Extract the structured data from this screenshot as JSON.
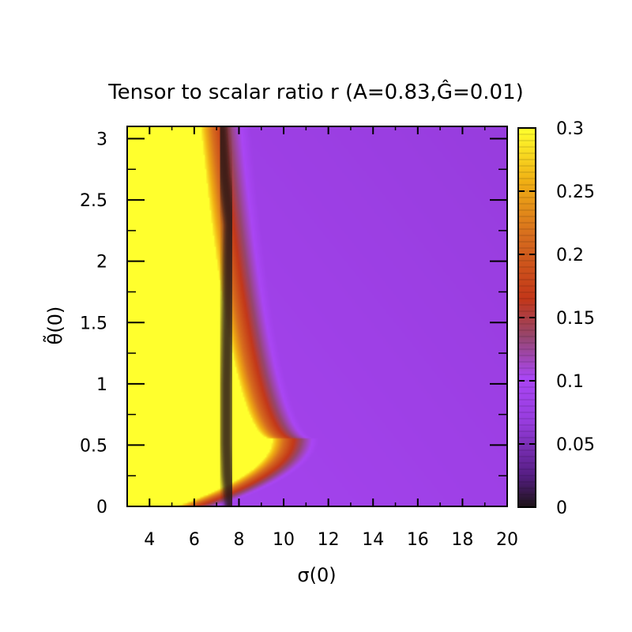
{
  "chart_data": {
    "type": "heatmap",
    "title": "Tensor to scalar ratio r (A=0.83,Ĝ=0.01)",
    "xlabel": "σ(0)",
    "ylabel": "θ̃(0)",
    "xlim": [
      3,
      20
    ],
    "ylim": [
      0,
      3.1
    ],
    "x_ticks": [
      4,
      6,
      8,
      10,
      12,
      14,
      16,
      18,
      20
    ],
    "y_ticks": [
      0,
      0.5,
      1,
      1.5,
      2,
      2.5,
      3
    ],
    "colorbar": {
      "range": [
        0,
        0.3
      ],
      "ticks": [
        0,
        0.05,
        0.1,
        0.15,
        0.2,
        0.25,
        0.3
      ],
      "tick_labels": [
        "0",
        "0.05",
        "0.1",
        "0.15",
        "0.2",
        "0.25",
        "0.3"
      ],
      "palette": "gnuplot pm3d (black-purple-red-orange-yellow)"
    },
    "contour_curve": {
      "points": [
        [
          7.65,
          0.0
        ],
        [
          7.5,
          0.25
        ],
        [
          7.45,
          0.5
        ],
        [
          7.45,
          1.0
        ],
        [
          7.5,
          1.5
        ],
        [
          7.55,
          2.0
        ],
        [
          7.6,
          2.3
        ],
        [
          7.35,
          2.7
        ],
        [
          7.2,
          3.1
        ]
      ]
    }
  }
}
